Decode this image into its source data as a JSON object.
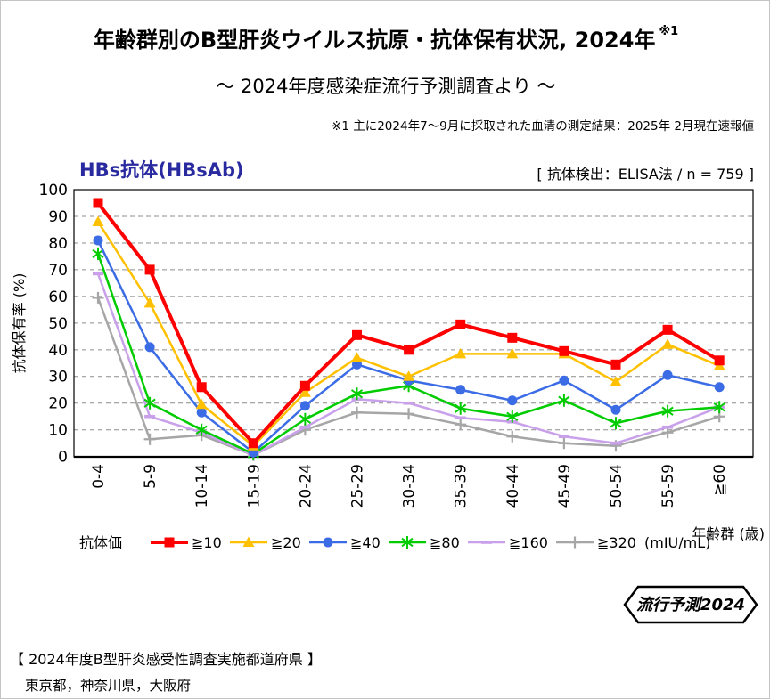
{
  "page": {
    "title": "年齢群別のB型肝炎ウイルス抗原・抗体保有状況, 2024年",
    "title_sup": "※1",
    "subtitle": "～ 2024年度感染症流行予測調査より ～",
    "note": "※1  主に2024年7～9月に採取された血清の測定結果：2025年 2月現在速報値"
  },
  "chart_header": {
    "title": "HBs抗体(HBsAb)",
    "title_color": "#2a2aa0",
    "method": "[ 抗体検出：ELISA法  / n = 759 ]"
  },
  "chart_data": {
    "type": "line",
    "title": "HBs抗体(HBsAb)",
    "xlabel": "年齢群 (歳)",
    "ylabel": "抗体保有率 (%)",
    "ylim": [
      0,
      100
    ],
    "ytick_step": 10,
    "grid": "horizontal-dashed",
    "legend_label": "抗体価",
    "legend_unit": "(mIU/mL)",
    "legend_position": "bottom",
    "categories": [
      "0-4",
      "5-9",
      "10-14",
      "15-19",
      "20-24",
      "25-29",
      "30-34",
      "35-39",
      "40-44",
      "45-49",
      "50-54",
      "55-59",
      "≧60"
    ],
    "series": [
      {
        "name": "≧10",
        "color": "#ff0000",
        "marker": "square",
        "line_width": 4,
        "values": [
          95,
          70,
          26,
          5,
          26.5,
          45.5,
          40,
          49.5,
          44.5,
          39.5,
          34.5,
          47.5,
          36
        ]
      },
      {
        "name": "≧20",
        "color": "#ffc000",
        "marker": "triangle",
        "line_width": 2.5,
        "values": [
          88,
          57.5,
          19.5,
          4,
          24,
          37,
          30,
          38.5,
          38.5,
          38.5,
          28,
          42,
          34
        ]
      },
      {
        "name": "≧40",
        "color": "#3b6ce6",
        "marker": "circle",
        "line_width": 2.5,
        "values": [
          81,
          41,
          16.5,
          1.5,
          19,
          34.5,
          28.5,
          25,
          21,
          28.5,
          17.5,
          30.5,
          26
        ]
      },
      {
        "name": "≧80",
        "color": "#00cc00",
        "marker": "star",
        "line_width": 2.5,
        "values": [
          76,
          20,
          10,
          1,
          14,
          23.5,
          26.5,
          18,
          15,
          21,
          12.5,
          17,
          18.5
        ]
      },
      {
        "name": "≧160",
        "color": "#c9a0ea",
        "marker": "dash",
        "line_width": 2.5,
        "values": [
          68.5,
          15,
          9,
          0.5,
          11,
          21.5,
          20,
          14.5,
          13,
          7.5,
          5,
          11,
          18.5
        ]
      },
      {
        "name": "≧320",
        "color": "#a6a6a6",
        "marker": "plus",
        "line_width": 2.5,
        "values": [
          59.5,
          6.5,
          8,
          0.5,
          10,
          16.5,
          16,
          12,
          7.5,
          5,
          4,
          9,
          15
        ]
      }
    ]
  },
  "badge": {
    "label": "流行予測2024"
  },
  "footer": {
    "heading": "【 2024年度B型肝炎感受性調査実施都道府県 】",
    "prefectures": "東京都，神奈川県，大阪府"
  }
}
